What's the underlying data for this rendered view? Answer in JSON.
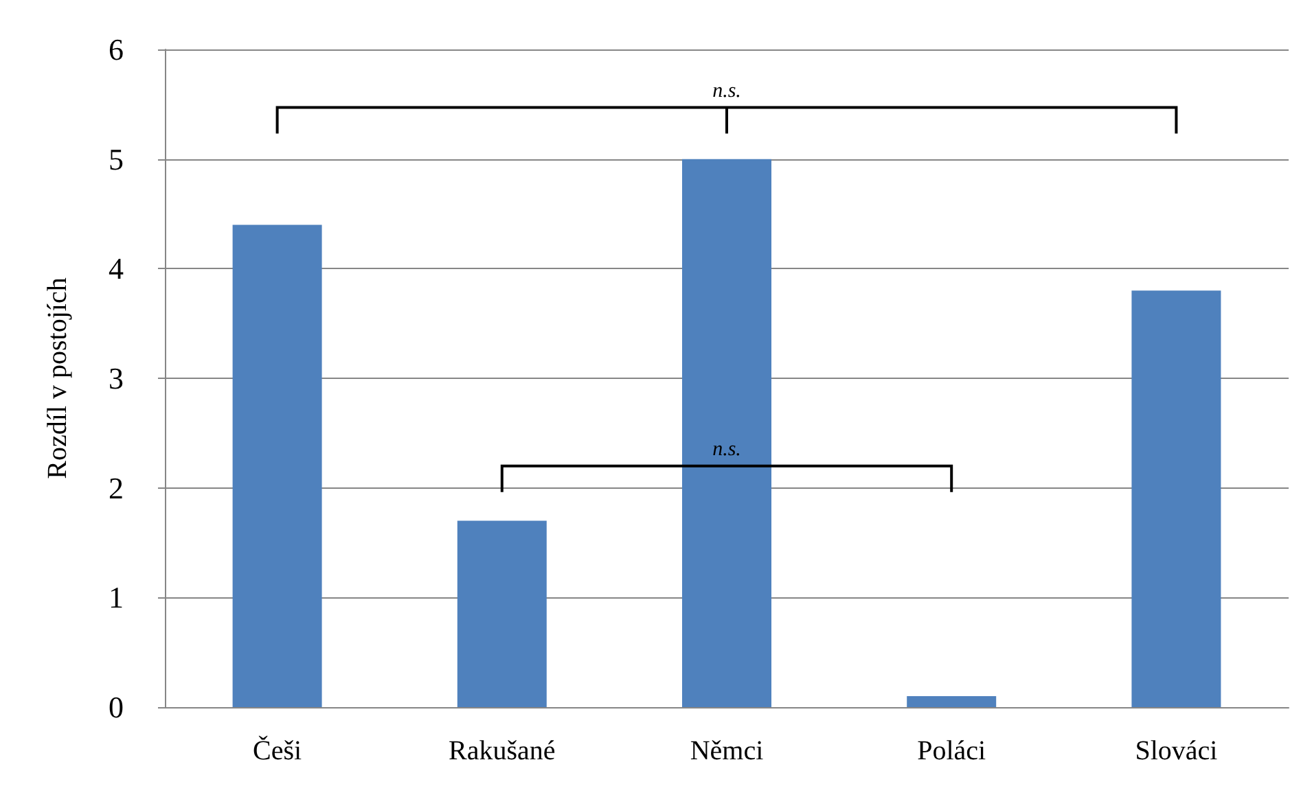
{
  "chart_data": {
    "type": "bar",
    "ylabel": "Rozdíl v postojích",
    "categories": [
      "Češi",
      "Rakušané",
      "Němci",
      "Poláci",
      "Slováci"
    ],
    "values": [
      4.4,
      1.7,
      5.0,
      0.1,
      3.8
    ],
    "color": "#4f81bd",
    "ylim": [
      0,
      6
    ],
    "yticks": [
      0,
      1,
      2,
      3,
      4,
      5,
      6
    ],
    "grid": "y",
    "annotations": [
      "n.s.",
      "n.s."
    ]
  }
}
